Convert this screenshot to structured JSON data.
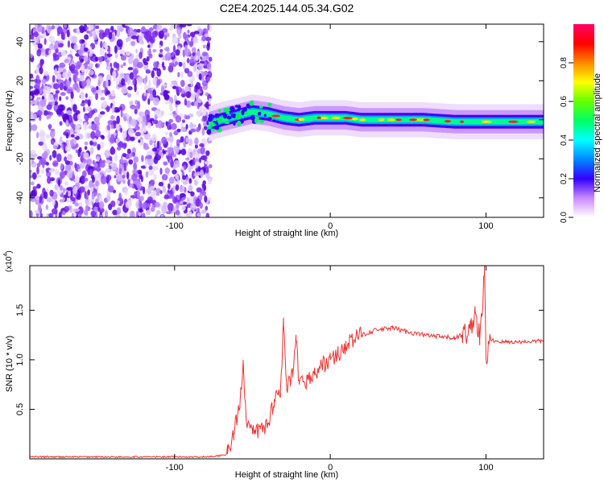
{
  "title": "C2E4.2025.144.05.34.G02",
  "chart_data": [
    {
      "type": "heatmap",
      "xlabel": "Height of straight line (km)",
      "ylabel": "Frequency (Hz)",
      "xlim": [
        -193,
        137
      ],
      "ylim": [
        -50,
        49
      ],
      "xticks": [
        -100,
        0,
        100
      ],
      "yticks": [
        -40,
        -20,
        0,
        20,
        40
      ],
      "colorbar": {
        "label": "Normalized spectral amplitude",
        "ticks": [
          "0.0",
          "0.2",
          "0.4",
          "0.6",
          "0.8"
        ],
        "range": [
          0,
          1
        ]
      },
      "features": {
        "noise_region_x": [
          -193,
          -77
        ],
        "ridge": [
          {
            "x": -78,
            "f": -2
          },
          {
            "x": -70,
            "f": 0
          },
          {
            "x": -60,
            "f": 2
          },
          {
            "x": -50,
            "f": 4
          },
          {
            "x": -40,
            "f": 3
          },
          {
            "x": -30,
            "f": 1
          },
          {
            "x": -20,
            "f": 0
          },
          {
            "x": -10,
            "f": 1
          },
          {
            "x": 0,
            "f": 1
          },
          {
            "x": 10,
            "f": 1
          },
          {
            "x": 20,
            "f": 0
          },
          {
            "x": 40,
            "f": 0
          },
          {
            "x": 60,
            "f": 0
          },
          {
            "x": 80,
            "f": -1
          },
          {
            "x": 95,
            "f": -1
          },
          {
            "x": 110,
            "f": -1
          },
          {
            "x": 137,
            "f": -1
          }
        ]
      }
    },
    {
      "type": "line",
      "xlabel": "Height of straight line (km)",
      "ylabel": "SNR (10 * v/v)",
      "scale_label": "(x10",
      "scale_exp": "4",
      "xlim": [
        -193,
        137
      ],
      "ylim": [
        0,
        1.95
      ],
      "xticks": [
        -100,
        0,
        100
      ],
      "yticks": [
        0.5,
        1.0,
        1.5
      ],
      "series_color": "#ee3030",
      "points": [
        [
          -193,
          0.02
        ],
        [
          -100,
          0.02
        ],
        [
          -80,
          0.02
        ],
        [
          -72,
          0.03
        ],
        [
          -66,
          0.05
        ],
        [
          -62,
          0.25
        ],
        [
          -58,
          0.55
        ],
        [
          -56,
          1.0
        ],
        [
          -54,
          0.4
        ],
        [
          -50,
          0.25
        ],
        [
          -45,
          0.3
        ],
        [
          -40,
          0.35
        ],
        [
          -36,
          0.6
        ],
        [
          -32,
          0.7
        ],
        [
          -30,
          1.35
        ],
        [
          -28,
          0.7
        ],
        [
          -24,
          0.85
        ],
        [
          -22,
          1.2
        ],
        [
          -20,
          0.75
        ],
        [
          -15,
          0.8
        ],
        [
          -10,
          0.85
        ],
        [
          -5,
          0.95
        ],
        [
          0,
          1.0
        ],
        [
          5,
          1.05
        ],
        [
          10,
          1.15
        ],
        [
          15,
          1.2
        ],
        [
          20,
          1.25
        ],
        [
          25,
          1.28
        ],
        [
          30,
          1.3
        ],
        [
          40,
          1.32
        ],
        [
          50,
          1.28
        ],
        [
          60,
          1.25
        ],
        [
          70,
          1.23
        ],
        [
          80,
          1.22
        ],
        [
          85,
          1.25
        ],
        [
          90,
          1.3
        ],
        [
          93,
          1.5
        ],
        [
          96,
          1.2
        ],
        [
          98,
          1.55
        ],
        [
          99,
          1.95
        ],
        [
          100,
          1.0
        ],
        [
          103,
          1.2
        ],
        [
          110,
          1.18
        ],
        [
          120,
          1.18
        ],
        [
          137,
          1.19
        ]
      ]
    }
  ]
}
